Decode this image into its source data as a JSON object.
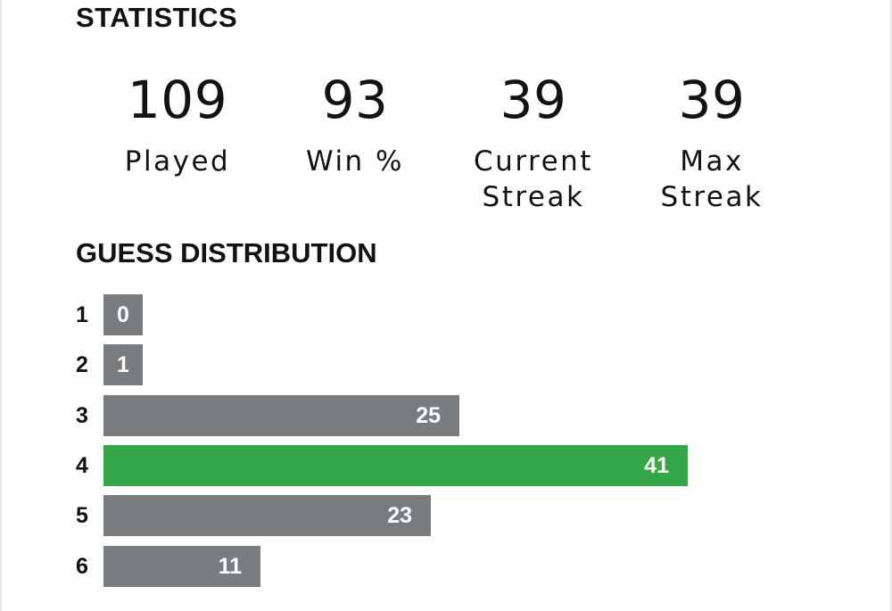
{
  "statistics": {
    "heading": "STATISTICS",
    "items": [
      {
        "value": "109",
        "label": "Played"
      },
      {
        "value": "93",
        "label": "Win %"
      },
      {
        "value": "39",
        "label": "Current\nStreak"
      },
      {
        "value": "39",
        "label": "Max\nStreak"
      }
    ]
  },
  "guess_distribution": {
    "heading": "GUESS DISTRIBUTION",
    "highlight_guess": 4,
    "colors": {
      "bar": "#787c7e",
      "highlight": "#36a749",
      "bar_text": "#ffffff"
    },
    "rows": [
      {
        "guess": "1",
        "count": 0
      },
      {
        "guess": "2",
        "count": 1
      },
      {
        "guess": "3",
        "count": 25
      },
      {
        "guess": "4",
        "count": 41
      },
      {
        "guess": "5",
        "count": 23
      },
      {
        "guess": "6",
        "count": 11
      }
    ]
  }
}
